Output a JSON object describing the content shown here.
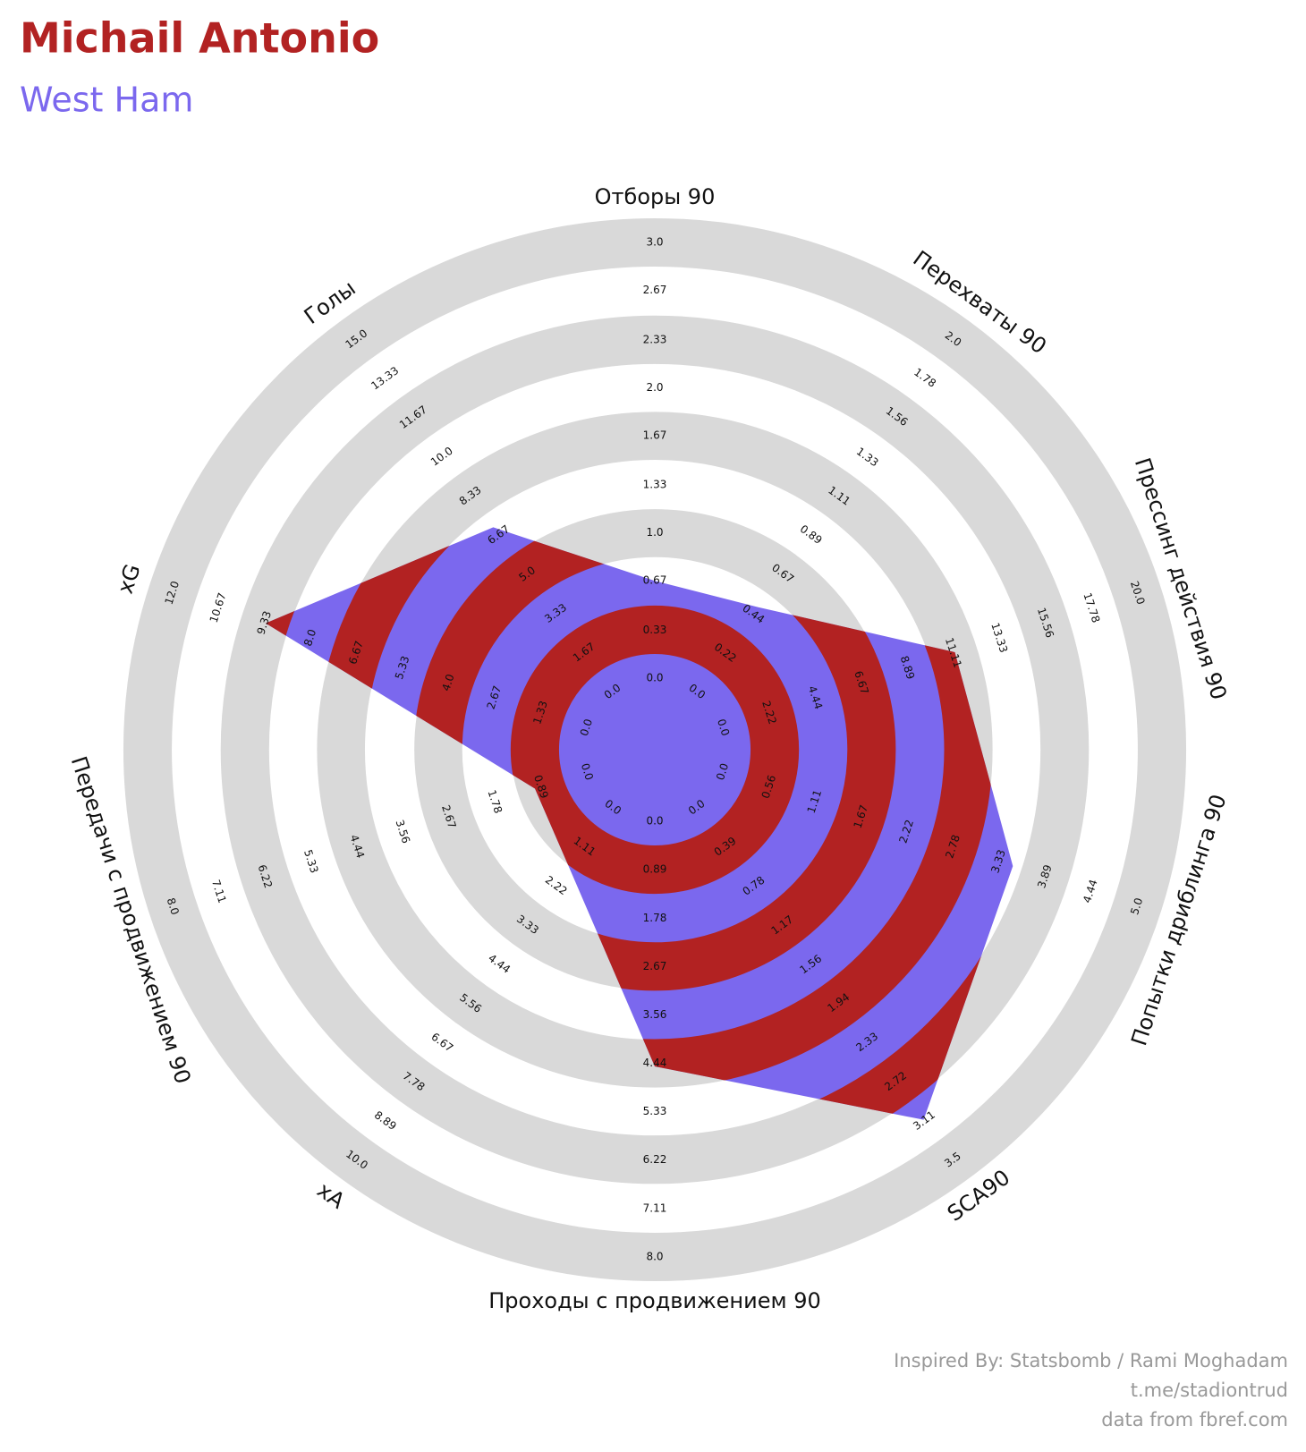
{
  "chart_data": {
    "type": "radar",
    "title": "Michail Antonio",
    "subtitle": "West Ham",
    "title_color": "#b22222",
    "subtitle_color": "#7b68ee",
    "colors": [
      "#7b68ee",
      "#b22222"
    ],
    "ring_color": "#d9d9d9",
    "axes": [
      {
        "name": "Отборы 90",
        "lim": [
          0,
          3
        ],
        "ticks": [
          {
            "value": 0,
            "label": "0.0"
          },
          0.33,
          0.67,
          {
            "value": 1,
            "label": "1.0"
          },
          1.33,
          1.67,
          {
            "value": 2,
            "label": "2.0"
          },
          2.33,
          2.67,
          {
            "value": 3,
            "label": "3.0"
          }
        ]
      },
      {
        "name": "Перехваты 90",
        "lim": [
          0,
          2
        ],
        "ticks": [
          {
            "value": 0,
            "label": "0.0"
          },
          0.22,
          0.44,
          0.67,
          0.89,
          1.11,
          1.33,
          1.56,
          1.78,
          {
            "value": 2,
            "label": "2.0"
          }
        ]
      },
      {
        "name": "Прессинг действия 90",
        "lim": [
          0,
          20
        ],
        "ticks": [
          {
            "value": 0,
            "label": "0.0"
          },
          2.22,
          4.44,
          6.67,
          8.89,
          11.11,
          13.33,
          15.56,
          17.78,
          {
            "value": 20,
            "label": "20.0"
          }
        ]
      },
      {
        "name": "Попытки дриблинга 90",
        "lim": [
          0,
          5
        ],
        "ticks": [
          {
            "value": 0,
            "label": "0.0"
          },
          0.56,
          1.11,
          1.67,
          2.22,
          2.78,
          3.33,
          3.89,
          4.44,
          {
            "value": 5,
            "label": "5.0"
          }
        ]
      },
      {
        "name": "SCA90",
        "lim": [
          0,
          3.5
        ],
        "ticks": [
          {
            "value": 0,
            "label": "0.0"
          },
          0.39,
          0.78,
          1.17,
          1.56,
          1.94,
          2.33,
          2.72,
          3.11,
          3.5
        ]
      },
      {
        "name": "Проходы с продвижением 90",
        "lim": [
          0,
          8
        ],
        "ticks": [
          {
            "value": 0,
            "label": "0.0"
          },
          0.89,
          1.78,
          2.67,
          3.56,
          4.44,
          5.33,
          6.22,
          7.11,
          {
            "value": 8,
            "label": "8.0"
          }
        ]
      },
      {
        "name": "xA",
        "lim": [
          0,
          10
        ],
        "ticks": [
          {
            "value": 0,
            "label": "0.0"
          },
          1.11,
          2.22,
          3.33,
          4.44,
          5.56,
          6.67,
          7.78,
          8.89,
          {
            "value": 10,
            "label": "10.0"
          }
        ]
      },
      {
        "name": "Передачи с продвижением 90",
        "lim": [
          0,
          8
        ],
        "ticks": [
          {
            "value": 0,
            "label": "0.0"
          },
          0.89,
          1.78,
          2.67,
          3.56,
          4.44,
          5.33,
          6.22,
          7.11,
          {
            "value": 8,
            "label": "8.0"
          }
        ]
      },
      {
        "name": "xG",
        "lim": [
          0,
          12
        ],
        "ticks": [
          {
            "value": 0,
            "label": "0.0"
          },
          1.33,
          2.67,
          {
            "value": 4,
            "label": "4.0"
          },
          5.33,
          6.67,
          {
            "value": 8,
            "label": "8.0"
          },
          9.33,
          10.67,
          {
            "value": 12,
            "label": "12.0"
          }
        ]
      },
      {
        "name": "Голы",
        "lim": [
          0,
          15
        ],
        "ticks": [
          {
            "value": 0,
            "label": "0.0"
          },
          1.67,
          3.33,
          {
            "value": 5,
            "label": "5.0"
          },
          6.67,
          8.33,
          {
            "value": 10,
            "label": "10.0"
          },
          11.67,
          13.33,
          {
            "value": 15,
            "label": "15.0"
          }
        ]
      }
    ],
    "values": [
      0.67,
      0.48,
      11.2,
      3.5,
      3.1,
      4.5,
      1.7,
      1.0,
      9.3,
      7.0
    ],
    "credits": [
      "Inspired By: Statsbomb / Rami Moghadam",
      "t.me/stadiontrud",
      "data from fbref.com"
    ],
    "credits_color": "#999999"
  }
}
